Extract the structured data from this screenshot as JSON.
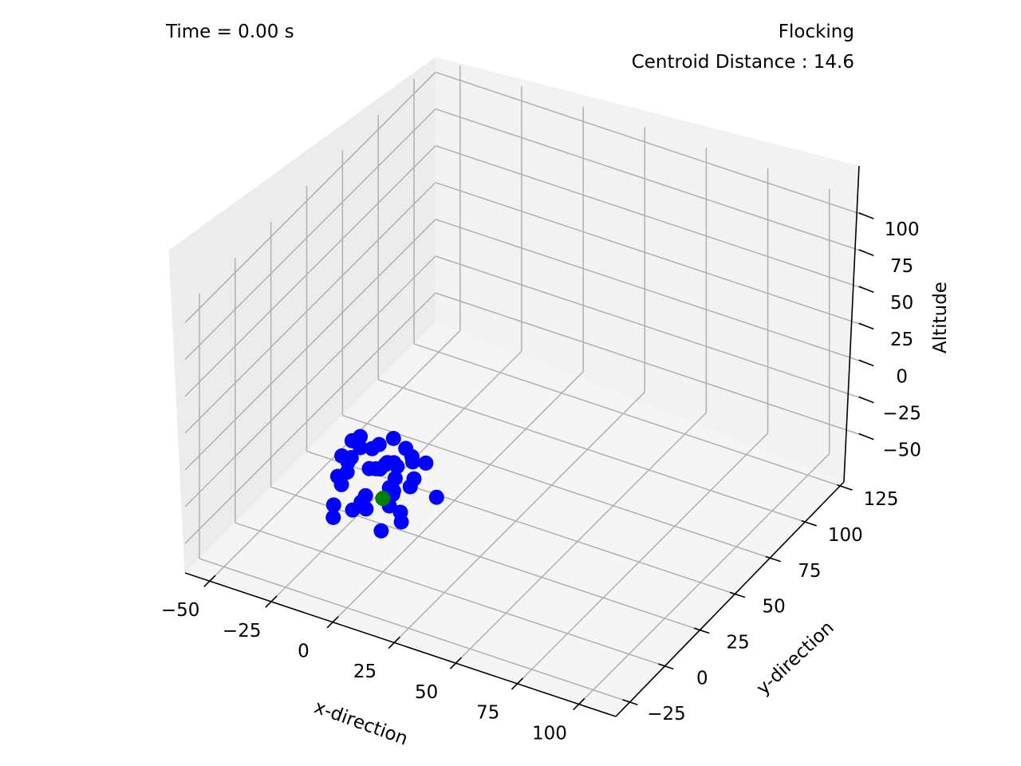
{
  "chart_data": {
    "type": "scatter",
    "projection": "3d",
    "time_text": "Time = 0.00 s",
    "mode_text": "Flocking",
    "centroid_text": "Centroid Distance : 14.6",
    "axes": {
      "x": {
        "label": "x-direction",
        "range": [
          -60,
          115
        ],
        "ticks": [
          -50,
          -25,
          0,
          25,
          50,
          75,
          100
        ],
        "tick_labels": [
          "−50",
          "−25",
          "0",
          "25",
          "50",
          "75",
          "100"
        ]
      },
      "y": {
        "label": "y-direction",
        "range": [
          -35,
          140
        ],
        "ticks": [
          -25,
          0,
          25,
          50,
          75,
          100,
          125
        ],
        "tick_labels": [
          "−25",
          "0",
          "25",
          "50",
          "75",
          "100",
          "125"
        ]
      },
      "z": {
        "label": "Altitude",
        "range": [
          -70,
          110
        ],
        "ticks": [
          -50,
          -25,
          0,
          25,
          50,
          75,
          100
        ],
        "tick_labels": [
          "−50",
          "−25",
          "0",
          "25",
          "50",
          "75",
          "100"
        ]
      }
    },
    "grid": true,
    "series": [
      {
        "color": "#0000ff",
        "points": [
          [
            -12,
            -8,
            10
          ],
          [
            -6,
            -14,
            15
          ],
          [
            -8,
            -2,
            12
          ],
          [
            -2,
            -6,
            5
          ],
          [
            3,
            -2,
            8
          ],
          [
            7,
            4,
            14
          ],
          [
            11,
            2,
            9
          ],
          [
            14,
            6,
            6
          ],
          [
            -14,
            2,
            -2
          ],
          [
            -9,
            8,
            1
          ],
          [
            -4,
            2,
            -4
          ],
          [
            1,
            6,
            -1
          ],
          [
            5,
            -4,
            -6
          ],
          [
            9,
            -8,
            -2
          ],
          [
            -16,
            -4,
            -10
          ],
          [
            -11,
            -10,
            -7
          ],
          [
            -6,
            12,
            -12
          ],
          [
            0,
            10,
            -8
          ],
          [
            4,
            0,
            -15
          ],
          [
            8,
            8,
            -10
          ],
          [
            -18,
            6,
            -18
          ],
          [
            -13,
            -12,
            -20
          ],
          [
            -7,
            0,
            -22
          ],
          [
            -1,
            -10,
            -18
          ],
          [
            3,
            14,
            -24
          ],
          [
            6,
            2,
            -28
          ],
          [
            11,
            -6,
            -24
          ],
          [
            16,
            10,
            -20
          ],
          [
            -15,
            10,
            4
          ],
          [
            -3,
            -16,
            -14
          ],
          [
            2,
            4,
            18
          ],
          [
            -9,
            -6,
            20
          ],
          [
            12,
            -12,
            12
          ],
          [
            -5,
            6,
            8
          ],
          [
            0,
            -2,
            2
          ],
          [
            6,
            10,
            2
          ],
          [
            -10,
            2,
            -30
          ],
          [
            -2,
            8,
            -34
          ],
          [
            4,
            -8,
            -32
          ],
          [
            -12,
            -14,
            -26
          ]
        ]
      },
      {
        "color": "#008000",
        "points": [
          [
            0,
            0,
            -20
          ]
        ]
      }
    ]
  }
}
